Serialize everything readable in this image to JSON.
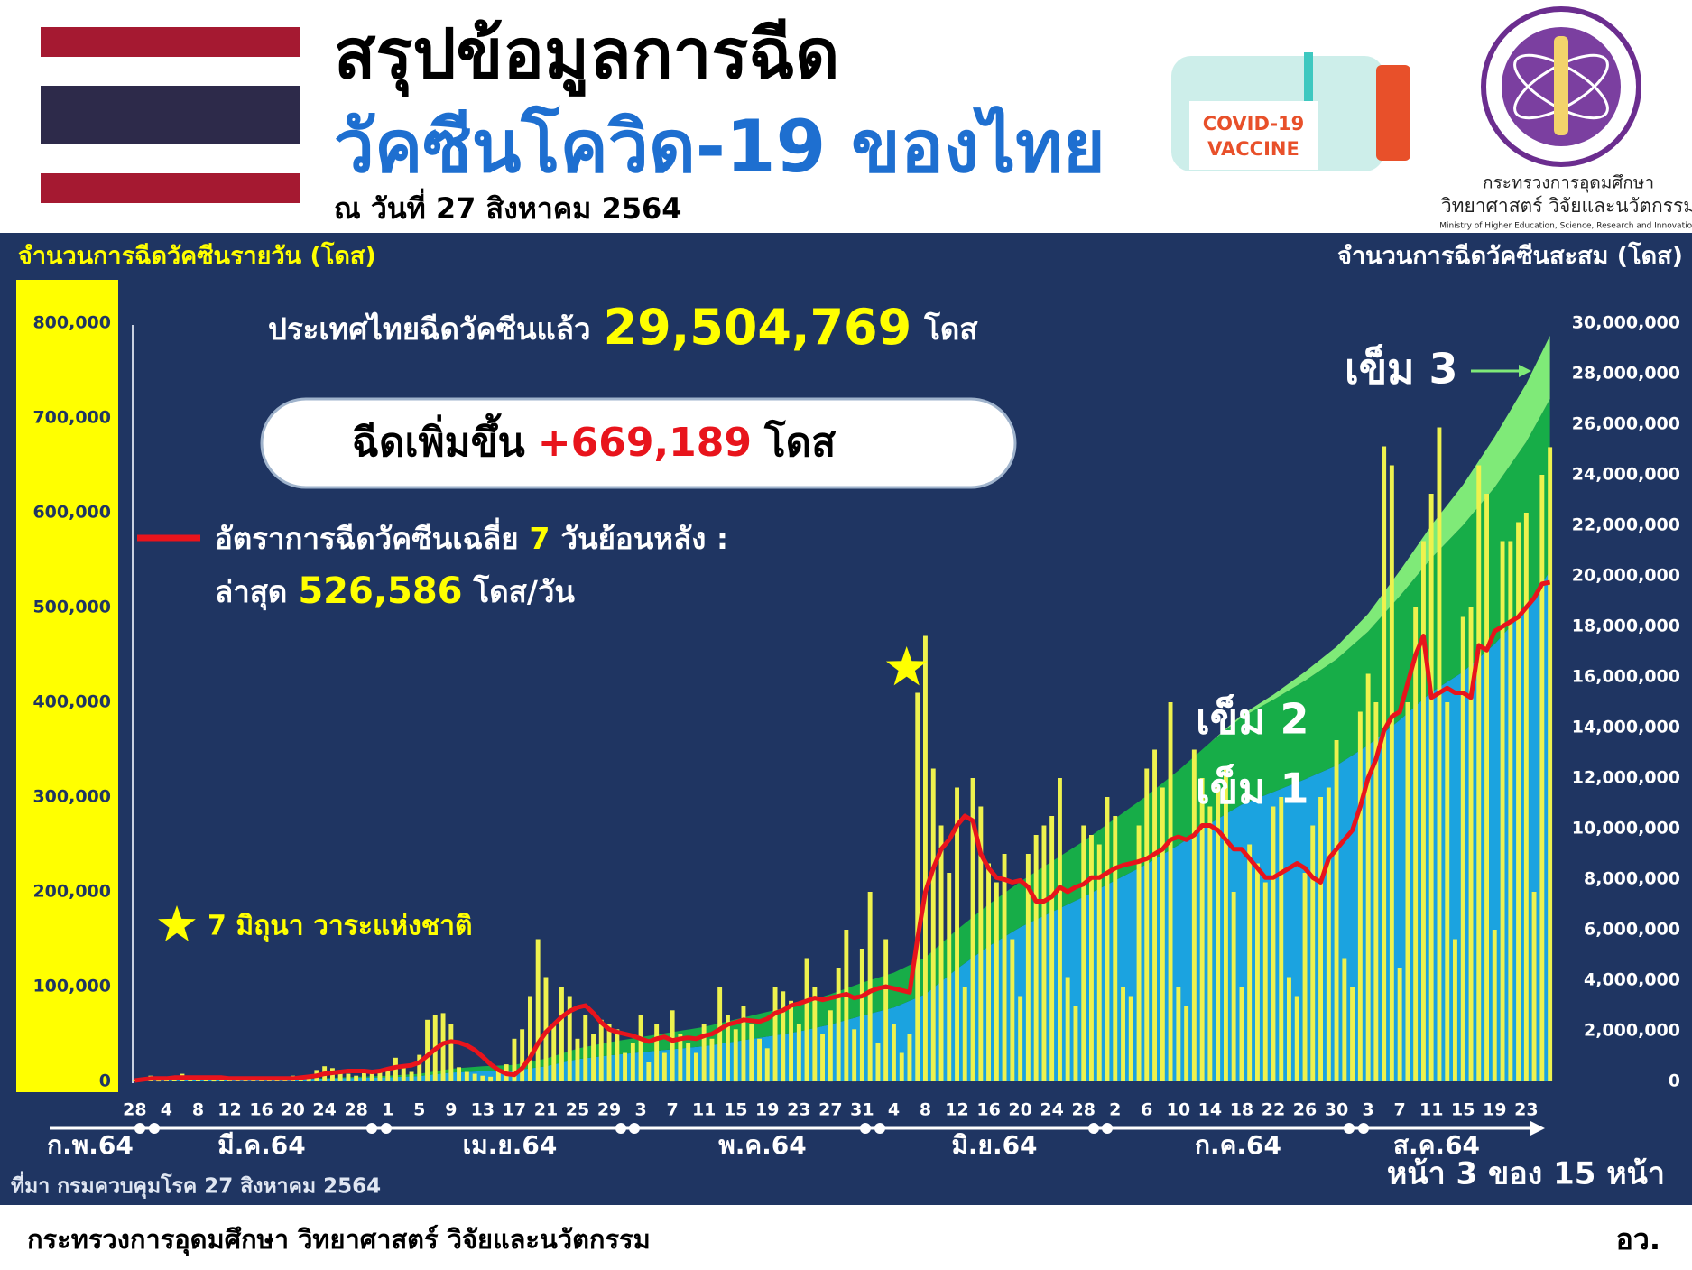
{
  "header": {
    "title_line1": "สรุปข้อมูลการฉีด",
    "title_line2": "วัคซีนโควิด-19 ของไทย",
    "date": "ณ วันที่ 27 สิงหาคม 2564",
    "vaccine_label": [
      "COVID-19",
      "VACCINE"
    ],
    "ministry_logo": {
      "line1": "กระทรวงการอุดมศึกษา",
      "line2": "วิทยาศาสตร์ วิจัยและนวัตกรรม",
      "english": "Ministry of Higher Education, Science, Research and Innovation"
    }
  },
  "summary": {
    "total_prefix": "ประเทศไทยฉีดวัคซีนแล้ว",
    "total_value": "29,504,769",
    "total_unit": "โดส",
    "increase_prefix": "ฉีดเพิ่มขึ้น",
    "increase_value": "+669,189",
    "increase_unit": "โดส"
  },
  "chart_data": [
    {
      "type": "bar",
      "y_axis_label": "จำนวนการฉีดวัคซีนรายวัน (โดส)",
      "categories": [
        "28",
        null,
        null,
        null,
        "4",
        null,
        null,
        null,
        "8",
        null,
        null,
        null,
        "12",
        null,
        null,
        null,
        "16",
        null,
        null,
        null,
        "20",
        null,
        null,
        null,
        "24",
        null,
        null,
        null,
        "28",
        null,
        null,
        null,
        "1",
        null,
        null,
        null,
        "5",
        null,
        null,
        null,
        "9",
        null,
        null,
        null,
        "13",
        null,
        null,
        null,
        "17",
        null,
        null,
        null,
        "21",
        null,
        null,
        null,
        "25",
        null,
        null,
        null,
        "29",
        null,
        null,
        null,
        "3",
        null,
        null,
        null,
        "7",
        null,
        null,
        null,
        "11",
        null,
        null,
        null,
        "15",
        null,
        null,
        null,
        "19",
        null,
        null,
        null,
        "23",
        null,
        null,
        null,
        "27",
        null,
        null,
        null,
        "31",
        null,
        null,
        null,
        "4",
        null,
        null,
        null,
        "8",
        null,
        null,
        null,
        "12",
        null,
        null,
        null,
        "16",
        null,
        null,
        null,
        "20",
        null,
        null,
        null,
        "24",
        null,
        null,
        null,
        "28",
        null,
        null,
        null,
        "2",
        null,
        null,
        null,
        "6",
        null,
        null,
        null,
        "10",
        null,
        null,
        null,
        "14",
        null,
        null,
        null,
        "18",
        null,
        null,
        null,
        "22",
        null,
        null,
        null,
        "26",
        null,
        null,
        null,
        "30",
        null,
        null,
        null,
        "3",
        null,
        null,
        null,
        "7",
        null,
        null,
        null,
        "11",
        null,
        null,
        null,
        "15",
        null,
        null,
        null,
        "19",
        null,
        null,
        null,
        "23",
        null,
        null,
        null
      ],
      "month_labels": [
        "ก.พ.64",
        "มี.ค.64",
        "เม.ย.64",
        "พ.ค.64",
        "มิ.ย.64",
        "ก.ค.64",
        "ส.ค.64"
      ],
      "series": [
        {
          "type": "bar",
          "color": "#eef24e",
          "values": [
            1000,
            3000,
            6000,
            5000,
            2000,
            4000,
            8000,
            3000,
            2000,
            3000,
            5000,
            4000,
            3000,
            2000,
            4000,
            3000,
            2000,
            3000,
            2000,
            4000,
            6000,
            3000,
            5000,
            12000,
            16000,
            14000,
            10000,
            8000,
            6000,
            9000,
            12000,
            10000,
            14000,
            25000,
            18000,
            10000,
            28000,
            65000,
            70000,
            72000,
            60000,
            15000,
            10000,
            8000,
            6000,
            5000,
            12000,
            18000,
            45000,
            55000,
            90000,
            150000,
            110000,
            60000,
            100000,
            90000,
            45000,
            70000,
            50000,
            65000,
            60000,
            55000,
            30000,
            40000,
            70000,
            20000,
            60000,
            30000,
            75000,
            50000,
            40000,
            30000,
            60000,
            45000,
            100000,
            70000,
            55000,
            80000,
            60000,
            45000,
            35000,
            100000,
            95000,
            85000,
            60000,
            130000,
            100000,
            50000,
            75000,
            120000,
            160000,
            55000,
            140000,
            200000,
            40000,
            150000,
            60000,
            30000,
            50000,
            410000,
            470000,
            330000,
            270000,
            220000,
            310000,
            100000,
            320000,
            290000,
            230000,
            210000,
            240000,
            150000,
            90000,
            240000,
            260000,
            270000,
            280000,
            320000,
            110000,
            80000,
            270000,
            260000,
            250000,
            300000,
            280000,
            100000,
            90000,
            270000,
            330000,
            350000,
            310000,
            400000,
            100000,
            80000,
            350000,
            320000,
            290000,
            310000,
            330000,
            200000,
            100000,
            250000,
            230000,
            210000,
            290000,
            300000,
            110000,
            90000,
            220000,
            270000,
            300000,
            310000,
            360000,
            130000,
            100000,
            390000,
            430000,
            400000,
            670000,
            650000,
            120000,
            400000,
            500000,
            570000,
            620000,
            690000,
            400000,
            150000,
            490000,
            500000,
            650000,
            620000,
            160000,
            570000,
            570000,
            590000,
            600000,
            200000,
            640000,
            669189
          ]
        },
        {
          "type": "line",
          "color": "#e8141c",
          "name_parts": [
            "อัตราการฉีดวัคซีนเฉลี่ย",
            "7",
            "วันย้อนหลัง :"
          ],
          "latest": {
            "prefix": "ล่าสุด",
            "value": "526,586",
            "unit": "โดส/วัน"
          },
          "values": [
            1000,
            2000,
            3000,
            3000,
            3000,
            4000,
            4000,
            4000,
            4000,
            4000,
            4000,
            4000,
            3000,
            3000,
            3000,
            3000,
            3000,
            3000,
            3000,
            3000,
            3000,
            4000,
            5000,
            6000,
            8000,
            9000,
            10000,
            11000,
            11000,
            11000,
            10000,
            11000,
            13000,
            15000,
            16000,
            17000,
            20000,
            27000,
            34000,
            40000,
            42000,
            41000,
            38000,
            33000,
            26000,
            18000,
            12000,
            8000,
            7000,
            14000,
            25000,
            40000,
            52000,
            60000,
            68000,
            74000,
            78000,
            80000,
            72000,
            62000,
            55000,
            52000,
            50000,
            48000,
            45000,
            42000,
            45000,
            47000,
            43000,
            45000,
            46000,
            45000,
            48000,
            50000,
            55000,
            60000,
            62000,
            65000,
            64000,
            63000,
            66000,
            72000,
            75000,
            80000,
            82000,
            85000,
            88000,
            86000,
            88000,
            90000,
            92000,
            88000,
            90000,
            95000,
            98000,
            100000,
            98000,
            96000,
            94000,
            150000,
            200000,
            225000,
            245000,
            255000,
            270000,
            280000,
            275000,
            240000,
            225000,
            215000,
            213000,
            210000,
            212000,
            205000,
            190000,
            190000,
            195000,
            205000,
            200000,
            205000,
            208000,
            215000,
            215000,
            220000,
            225000,
            228000,
            230000,
            232000,
            235000,
            240000,
            245000,
            255000,
            258000,
            255000,
            260000,
            270000,
            270000,
            265000,
            255000,
            245000,
            245000,
            235000,
            225000,
            215000,
            215000,
            220000,
            225000,
            230000,
            225000,
            215000,
            210000,
            235000,
            245000,
            255000,
            265000,
            290000,
            320000,
            340000,
            370000,
            385000,
            390000,
            420000,
            450000,
            470000,
            405000,
            410000,
            415000,
            410000,
            410000,
            405000,
            460000,
            455000,
            475000,
            480000,
            485000,
            490000,
            500000,
            510000,
            525000,
            526586
          ]
        }
      ],
      "ylim": [
        0,
        800000
      ],
      "yticks": [
        0,
        {
          "value": 100000,
          "label": "100,000"
        },
        {
          "value": 200000,
          "label": "200,000"
        },
        {
          "value": 300000,
          "label": "300,000"
        },
        {
          "value": 400000,
          "label": "400,000"
        },
        {
          "value": 500000,
          "label": "500,000"
        },
        {
          "value": 600000,
          "label": "600,000"
        },
        {
          "value": 700000,
          "label": "700,000"
        },
        {
          "value": 800000,
          "label": "800,000"
        }
      ],
      "grid": false,
      "annotation": "7 มิถุนา วาระแห่งชาติ"
    },
    {
      "type": "area",
      "stacked": true,
      "y_axis_label": "จำนวนการฉีดวัคซีนสะสม (โดส)",
      "categories": [
        "28",
        "4",
        "8",
        "12",
        "16",
        "20",
        "24",
        "28",
        "1",
        "5",
        "9",
        "13",
        "17",
        "21",
        "25",
        "29",
        "3",
        "7",
        "11",
        "15",
        "19",
        "23",
        "27",
        "31",
        "4",
        "8",
        "12",
        "16",
        "20",
        "24",
        "28",
        "2",
        "6",
        "10",
        "14",
        "18",
        "22",
        "26",
        "30",
        "3",
        "7",
        "11",
        "15",
        "19",
        "23",
        null
      ],
      "series": [
        {
          "name": "เข็ม 1",
          "color": "#1ba3e0",
          "values": [
            0,
            20000,
            40000,
            60000,
            75000,
            90000,
            110000,
            140000,
            160000,
            210000,
            350000,
            400000,
            430000,
            600000,
            880000,
            1030000,
            1150000,
            1270000,
            1390000,
            1580000,
            1770000,
            1970000,
            2250000,
            2600000,
            2920000,
            3450000,
            4450000,
            5350000,
            6100000,
            6700000,
            7300000,
            7950000,
            8600000,
            9350000,
            10200000,
            10950000,
            11450000,
            11950000,
            12500000,
            13300000,
            14300000,
            15400000,
            16200000,
            17300000,
            18700000,
            20200000
          ]
        },
        {
          "name": "เข็ม 2",
          "color": "#17ad48",
          "values": [
            0,
            0,
            0,
            0,
            5000,
            10000,
            20000,
            40000,
            60000,
            90000,
            150000,
            200000,
            220000,
            300000,
            420000,
            520000,
            600000,
            680000,
            760000,
            870000,
            980000,
            1080000,
            1200000,
            1300000,
            1380000,
            1450000,
            1550000,
            1650000,
            1800000,
            2000000,
            2200000,
            2450000,
            2700000,
            2950000,
            3200000,
            3450000,
            3650000,
            3900000,
            4200000,
            4500000,
            4900000,
            5300000,
            5800000,
            6200000,
            6600000,
            6800000
          ]
        },
        {
          "name": "เข็ม 3",
          "color": "#7fea78",
          "values": [
            0,
            0,
            0,
            0,
            0,
            0,
            0,
            0,
            0,
            0,
            0,
            0,
            0,
            0,
            0,
            0,
            0,
            0,
            0,
            0,
            0,
            0,
            0,
            0,
            0,
            0,
            0,
            0,
            0,
            0,
            0,
            0,
            0,
            0,
            0,
            100000,
            200000,
            350000,
            500000,
            700000,
            1000000,
            1300000,
            1600000,
            2000000,
            2300000,
            2500000
          ]
        }
      ],
      "ylim": [
        0,
        30000000
      ],
      "yticks": [
        0,
        {
          "value": 2000000,
          "label": "2,000,000"
        },
        {
          "value": 4000000,
          "label": "4,000,000"
        },
        {
          "value": 6000000,
          "label": "6,000,000"
        },
        {
          "value": 8000000,
          "label": "8,000,000"
        },
        {
          "value": 10000000,
          "label": "10,000,000"
        },
        {
          "value": 12000000,
          "label": "12,000,000"
        },
        {
          "value": 14000000,
          "label": "14,000,000"
        },
        {
          "value": 16000000,
          "label": "16,000,000"
        },
        {
          "value": 18000000,
          "label": "18,000,000"
        },
        {
          "value": 20000000,
          "label": "20,000,000"
        },
        {
          "value": 22000000,
          "label": "22,000,000"
        },
        {
          "value": 24000000,
          "label": "24,000,000"
        },
        {
          "value": 26000000,
          "label": "26,000,000"
        },
        {
          "value": 28000000,
          "label": "28,000,000"
        },
        {
          "value": 30000000,
          "label": "30,000,000"
        }
      ]
    }
  ],
  "source": "ที่มา กรมควบคุมโรค 27 สิงหาคม 2564",
  "page": "หน้า 3 ของ 15 หน้า",
  "footer": {
    "ministry": "กระทรวงการอุดมศึกษา วิทยาศาสตร์ วิจัยและนวัตกรรม",
    "abbr": "อว."
  }
}
